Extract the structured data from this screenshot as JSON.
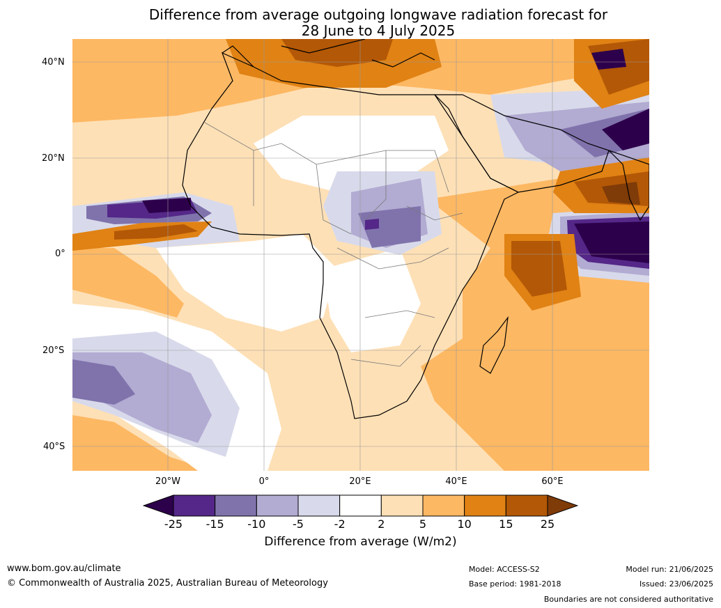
{
  "title_line1": "Difference from average outgoing longwave radiation forecast for",
  "title_line2": "28 June to 4 July 2025",
  "lat_labels": [
    "40°N",
    "20°N",
    "0°",
    "20°S",
    "40°S"
  ],
  "lon_labels": [
    "20°W",
    "0°",
    "20°E",
    "40°E",
    "60°E"
  ],
  "colorbar": {
    "ticks": [
      "-25",
      "-15",
      "-10",
      "-5",
      "-2",
      "2",
      "5",
      "10",
      "15",
      "25"
    ],
    "colors": [
      "#2d004b",
      "#542788",
      "#8073ac",
      "#b2abd2",
      "#d8daeb",
      "#ffffff",
      "#fee0b6",
      "#fdb863",
      "#e08214",
      "#b35806",
      "#7f3b08"
    ],
    "label": "Difference from average (W/m2)"
  },
  "footer": {
    "website": "www.bom.gov.au/climate",
    "copyright": "© Commonwealth of Australia 2025, Australian Bureau of Meteorology",
    "model": "Model: ACCESS-S2",
    "base_period": "Base period: 1981-2018",
    "model_run": "Model run: 21/06/2025",
    "issued": "Issued: 23/06/2025",
    "disclaimer": "Boundaries are not considered authoritative"
  }
}
